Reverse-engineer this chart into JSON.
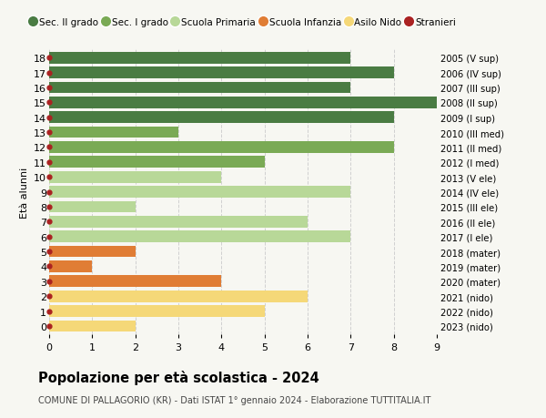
{
  "ages": [
    18,
    17,
    16,
    15,
    14,
    13,
    12,
    11,
    10,
    9,
    8,
    7,
    6,
    5,
    4,
    3,
    2,
    1,
    0
  ],
  "right_labels": [
    "2005 (V sup)",
    "2006 (IV sup)",
    "2007 (III sup)",
    "2008 (II sup)",
    "2009 (I sup)",
    "2010 (III med)",
    "2011 (II med)",
    "2012 (I med)",
    "2013 (V ele)",
    "2014 (IV ele)",
    "2015 (III ele)",
    "2016 (II ele)",
    "2017 (I ele)",
    "2018 (mater)",
    "2019 (mater)",
    "2020 (mater)",
    "2021 (nido)",
    "2022 (nido)",
    "2023 (nido)"
  ],
  "bar_values": [
    7,
    8,
    7,
    9,
    8,
    3,
    8,
    5,
    4,
    7,
    2,
    6,
    7,
    2,
    1,
    4,
    6,
    5,
    2
  ],
  "bar_colors": [
    "#4a7c43",
    "#4a7c43",
    "#4a7c43",
    "#4a7c43",
    "#4a7c43",
    "#7aaa55",
    "#7aaa55",
    "#7aaa55",
    "#b8d898",
    "#b8d898",
    "#b8d898",
    "#b8d898",
    "#b8d898",
    "#e07d35",
    "#e07d35",
    "#e07d35",
    "#f5d878",
    "#f5d878",
    "#f5d878"
  ],
  "dot_color": "#aa2222",
  "xlim_min": 0,
  "xlim_max": 9,
  "xticks": [
    0,
    1,
    2,
    3,
    4,
    5,
    6,
    7,
    8,
    9
  ],
  "ylabel_left": "Età alunni",
  "title": "Popolazione per età scolastica - 2024",
  "subtitle": "COMUNE DI PALLAGORIO (KR) - Dati ISTAT 1° gennaio 2024 - Elaborazione TUTTITALIA.IT",
  "legend_labels": [
    "Sec. II grado",
    "Sec. I grado",
    "Scuola Primaria",
    "Scuola Infanzia",
    "Asilo Nido",
    "Stranieri"
  ],
  "legend_colors": [
    "#4a7c43",
    "#7aaa55",
    "#b8d898",
    "#e07d35",
    "#f5d878",
    "#aa2222"
  ],
  "bar_height": 0.78,
  "grid_color": "#d0d0d0",
  "bg_color": "#f7f7f2"
}
